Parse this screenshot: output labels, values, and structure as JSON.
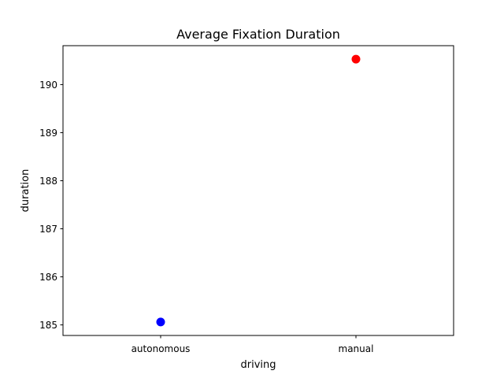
{
  "chart_data": {
    "type": "scatter",
    "title": "Average Fixation Duration",
    "xlabel": "driving",
    "ylabel": "duration",
    "categories": [
      "autonomous",
      "manual"
    ],
    "values": [
      185.06,
      190.53
    ],
    "point_colors": [
      "#0000ff",
      "#ff0000"
    ],
    "ylim": [
      184.78,
      190.81
    ],
    "yticks": [
      185,
      186,
      187,
      188,
      189,
      190
    ],
    "grid": false,
    "legend": "none"
  }
}
